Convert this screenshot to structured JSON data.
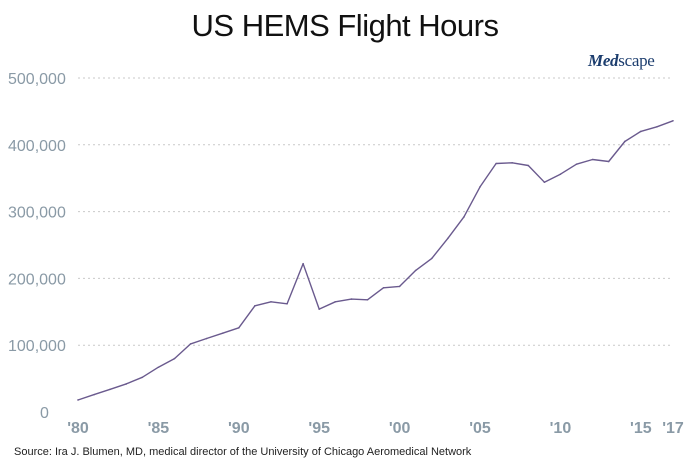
{
  "chart_data": {
    "type": "line",
    "title": "US HEMS Flight Hours",
    "xlabel": "",
    "ylabel": "",
    "x": [
      1980,
      1981,
      1982,
      1983,
      1984,
      1985,
      1986,
      1987,
      1988,
      1989,
      1990,
      1991,
      1992,
      1993,
      1994,
      1995,
      1996,
      1997,
      1998,
      1999,
      2000,
      2001,
      2002,
      2003,
      2004,
      2005,
      2006,
      2007,
      2008,
      2009,
      2010,
      2011,
      2012,
      2013,
      2014,
      2015,
      2016,
      2017
    ],
    "series": [
      {
        "name": "",
        "color": "#6a5a8e",
        "values": [
          18000,
          26000,
          34000,
          42000,
          52000,
          67000,
          80000,
          102000,
          110000,
          118000,
          126000,
          159000,
          165000,
          162000,
          222000,
          154000,
          165000,
          169000,
          168000,
          186000,
          188000,
          212000,
          230000,
          260000,
          292000,
          337000,
          372000,
          373000,
          369000,
          344000,
          356000,
          371000,
          378000,
          375000,
          405000,
          420000,
          427000,
          436000
        ]
      }
    ],
    "ylim": [
      0,
      500000
    ],
    "xlim": [
      1980,
      2017
    ],
    "grid": "horizontal-dotted",
    "y_ticks": [
      {
        "value": 0,
        "label": "0"
      },
      {
        "value": 100000,
        "label": "100,000"
      },
      {
        "value": 200000,
        "label": "200,000"
      },
      {
        "value": 300000,
        "label": "300,000"
      },
      {
        "value": 400000,
        "label": "400,000"
      },
      {
        "value": 500000,
        "label": "500,000"
      }
    ],
    "x_ticks": [
      {
        "value": 1980,
        "label": "'80"
      },
      {
        "value": 1985,
        "label": "'85"
      },
      {
        "value": 1990,
        "label": "'90"
      },
      {
        "value": 1995,
        "label": "'95"
      },
      {
        "value": 2000,
        "label": "'00"
      },
      {
        "value": 2005,
        "label": "'05"
      },
      {
        "value": 2010,
        "label": "'10"
      },
      {
        "value": 2015,
        "label": "'15"
      },
      {
        "value": 2017,
        "label": "'17"
      }
    ]
  },
  "logo": {
    "part1": "Med",
    "part2": "scape"
  },
  "source": "Source:  Ira J. Blumen, MD, medical director of the University of Chicago Aeromedical Network",
  "colors": {
    "line": "#6a5a8e",
    "grid": "#c9c9c9",
    "axis_text": "#8a9aa6",
    "logo": "#1c3d6e"
  }
}
